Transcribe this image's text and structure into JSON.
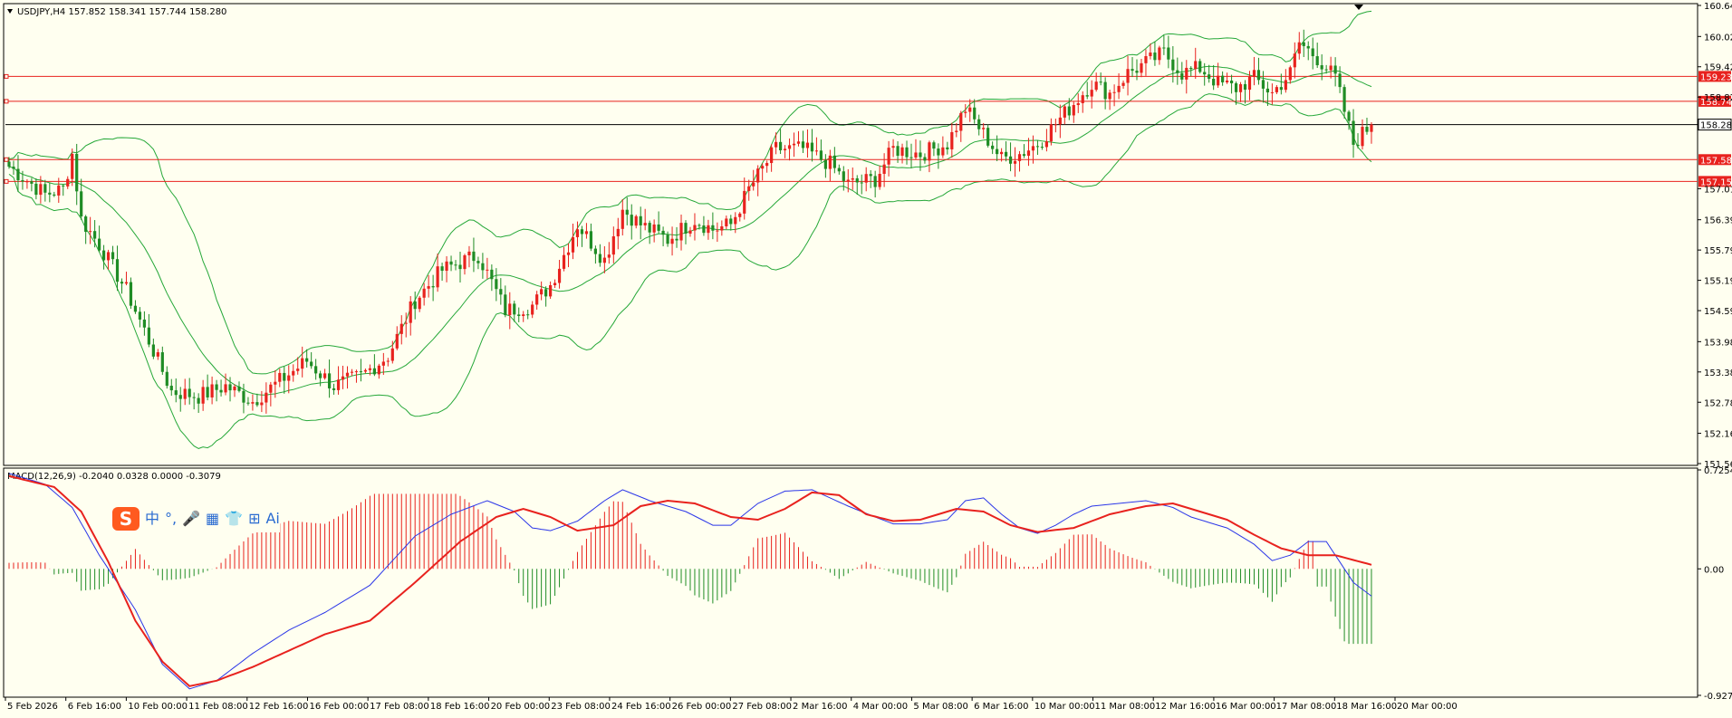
{
  "symbol_header": {
    "text": "USDJPY,H4  157.852 158.341 157.744 158.280"
  },
  "macd_header": {
    "text": "MACD(12,26,9) -0.2040 0.0328 0.0000 -0.3079"
  },
  "ime_toolbar": {
    "logo": "S",
    "items": [
      "中",
      "°,",
      "🎤",
      "▦",
      "👕",
      "⊞",
      "Ai"
    ]
  },
  "colors": {
    "background": "#fffff0",
    "bull_candle": "#e8221e",
    "bear_candle": "#1f8c25",
    "bands": "#26a839",
    "macd_line": "#2b36e8",
    "signal_line": "#e8221e",
    "level_line": "#e8221e",
    "current_price_line": "#000000"
  },
  "chart_data": [
    {
      "type": "candlestick",
      "title": "USDJPY,H4  157.852 158.341 157.744 158.280",
      "overlay": "Bollinger Bands",
      "ylim": [
        151.565,
        160.64
      ],
      "y_ticks": [
        "160.640",
        "160.025",
        "159.425",
        "158.825",
        "157.010",
        "156.395",
        "155.795",
        "155.195",
        "154.595",
        "153.980",
        "153.380",
        "152.780",
        "152.165",
        "151.565"
      ],
      "x_tick_labels": [
        "5 Feb 2026",
        "6 Feb 16:00",
        "10 Feb 00:00",
        "11 Feb 08:00",
        "12 Feb 16:00",
        "16 Feb 00:00",
        "17 Feb 08:00",
        "18 Feb 16:00",
        "20 Feb 00:00",
        "23 Feb 08:00",
        "24 Feb 16:00",
        "26 Feb 00:00",
        "27 Feb 08:00",
        "2 Mar 16:00",
        "4 Mar 00:00",
        "5 Mar 08:00",
        "6 Mar 16:00",
        "10 Mar 00:00",
        "11 Mar 08:00",
        "12 Mar 16:00",
        "16 Mar 00:00",
        "17 Mar 08:00",
        "18 Mar 16:00",
        "20 Mar 00:00"
      ],
      "price_levels": [
        {
          "label": "159.234",
          "value": 159.234
        },
        {
          "label": "158.741",
          "value": 158.741
        },
        {
          "label": "157.586",
          "value": 157.586
        },
        {
          "label": "157.154",
          "value": 157.154
        }
      ],
      "current_price": {
        "label": "158.280",
        "value": 158.28
      },
      "waypoints": [
        [
          0,
          157.45
        ],
        [
          8,
          156.9
        ],
        [
          12,
          157.0
        ],
        [
          14,
          157.7
        ],
        [
          16,
          156.4
        ],
        [
          20,
          155.9
        ],
        [
          26,
          155.0
        ],
        [
          30,
          154.2
        ],
        [
          36,
          153.0
        ],
        [
          42,
          152.9
        ],
        [
          48,
          153.1
        ],
        [
          54,
          152.8
        ],
        [
          60,
          153.2
        ],
        [
          66,
          153.6
        ],
        [
          72,
          153.1
        ],
        [
          78,
          153.3
        ],
        [
          84,
          153.7
        ],
        [
          90,
          154.8
        ],
        [
          96,
          155.4
        ],
        [
          104,
          155.7
        ],
        [
          110,
          154.6
        ],
        [
          116,
          154.7
        ],
        [
          120,
          155.1
        ],
        [
          126,
          156.3
        ],
        [
          132,
          155.6
        ],
        [
          136,
          156.6
        ],
        [
          140,
          156.3
        ],
        [
          146,
          156.0
        ],
        [
          152,
          156.4
        ],
        [
          156,
          156.2
        ],
        [
          160,
          156.3
        ],
        [
          164,
          157.0
        ],
        [
          170,
          157.8
        ],
        [
          176,
          157.8
        ],
        [
          182,
          157.5
        ],
        [
          186,
          157.1
        ],
        [
          192,
          157.2
        ],
        [
          196,
          157.8
        ],
        [
          202,
          157.7
        ],
        [
          208,
          157.9
        ],
        [
          212,
          158.6
        ],
        [
          216,
          158.1
        ],
        [
          220,
          157.6
        ],
        [
          224,
          157.7
        ],
        [
          228,
          157.9
        ],
        [
          234,
          158.5
        ],
        [
          240,
          159.1
        ],
        [
          244,
          158.9
        ],
        [
          248,
          159.3
        ],
        [
          252,
          159.5
        ],
        [
          256,
          159.7
        ],
        [
          260,
          159.3
        ],
        [
          264,
          159.4
        ],
        [
          268,
          159.1
        ],
        [
          272,
          159.0
        ],
        [
          276,
          159.2
        ],
        [
          280,
          158.9
        ],
        [
          284,
          159.3
        ],
        [
          286,
          159.9
        ],
        [
          290,
          159.6
        ],
        [
          294,
          159.2
        ],
        [
          298,
          157.9
        ],
        [
          300,
          158.1
        ],
        [
          302,
          158.28
        ]
      ],
      "candle_count": 303
    },
    {
      "type": "macd",
      "title": "MACD(12,26,9) -0.2040 0.0328 0.0000 -0.3079",
      "ylim": [
        -0.9276,
        0.7254
      ],
      "y_ticks": [
        "0.7254",
        "0.00",
        "-0.9276"
      ],
      "macd_waypoints": [
        [
          0,
          0.7
        ],
        [
          8,
          0.62
        ],
        [
          14,
          0.45
        ],
        [
          20,
          0.1
        ],
        [
          28,
          -0.3
        ],
        [
          34,
          -0.7
        ],
        [
          40,
          -0.88
        ],
        [
          46,
          -0.82
        ],
        [
          54,
          -0.62
        ],
        [
          62,
          -0.45
        ],
        [
          70,
          -0.32
        ],
        [
          80,
          -0.12
        ],
        [
          90,
          0.24
        ],
        [
          98,
          0.4
        ],
        [
          106,
          0.5
        ],
        [
          112,
          0.42
        ],
        [
          116,
          0.3
        ],
        [
          120,
          0.28
        ],
        [
          126,
          0.35
        ],
        [
          132,
          0.5
        ],
        [
          136,
          0.58
        ],
        [
          142,
          0.5
        ],
        [
          150,
          0.42
        ],
        [
          156,
          0.32
        ],
        [
          160,
          0.32
        ],
        [
          166,
          0.48
        ],
        [
          172,
          0.57
        ],
        [
          178,
          0.58
        ],
        [
          186,
          0.46
        ],
        [
          192,
          0.38
        ],
        [
          196,
          0.33
        ],
        [
          202,
          0.33
        ],
        [
          208,
          0.36
        ],
        [
          212,
          0.5
        ],
        [
          216,
          0.52
        ],
        [
          220,
          0.4
        ],
        [
          224,
          0.3
        ],
        [
          228,
          0.26
        ],
        [
          232,
          0.32
        ],
        [
          236,
          0.4
        ],
        [
          240,
          0.46
        ],
        [
          246,
          0.48
        ],
        [
          252,
          0.5
        ],
        [
          258,
          0.45
        ],
        [
          262,
          0.38
        ],
        [
          270,
          0.3
        ],
        [
          276,
          0.18
        ],
        [
          280,
          0.06
        ],
        [
          284,
          0.1
        ],
        [
          288,
          0.2
        ],
        [
          292,
          0.2
        ],
        [
          298,
          -0.1
        ],
        [
          302,
          -0.2
        ]
      ],
      "signal_waypoints": [
        [
          0,
          0.68
        ],
        [
          10,
          0.6
        ],
        [
          16,
          0.42
        ],
        [
          22,
          0.05
        ],
        [
          28,
          -0.38
        ],
        [
          34,
          -0.68
        ],
        [
          40,
          -0.86
        ],
        [
          46,
          -0.82
        ],
        [
          54,
          -0.72
        ],
        [
          62,
          -0.6
        ],
        [
          70,
          -0.48
        ],
        [
          80,
          -0.38
        ],
        [
          90,
          -0.1
        ],
        [
          100,
          0.2
        ],
        [
          108,
          0.38
        ],
        [
          114,
          0.44
        ],
        [
          120,
          0.38
        ],
        [
          126,
          0.28
        ],
        [
          134,
          0.32
        ],
        [
          140,
          0.46
        ],
        [
          146,
          0.5
        ],
        [
          152,
          0.48
        ],
        [
          160,
          0.38
        ],
        [
          166,
          0.36
        ],
        [
          172,
          0.44
        ],
        [
          178,
          0.56
        ],
        [
          184,
          0.54
        ],
        [
          190,
          0.4
        ],
        [
          196,
          0.35
        ],
        [
          202,
          0.36
        ],
        [
          210,
          0.44
        ],
        [
          216,
          0.42
        ],
        [
          222,
          0.32
        ],
        [
          228,
          0.27
        ],
        [
          236,
          0.3
        ],
        [
          244,
          0.4
        ],
        [
          252,
          0.46
        ],
        [
          258,
          0.48
        ],
        [
          264,
          0.42
        ],
        [
          270,
          0.36
        ],
        [
          276,
          0.25
        ],
        [
          282,
          0.15
        ],
        [
          288,
          0.1
        ],
        [
          294,
          0.1
        ],
        [
          302,
          0.03
        ]
      ]
    }
  ]
}
